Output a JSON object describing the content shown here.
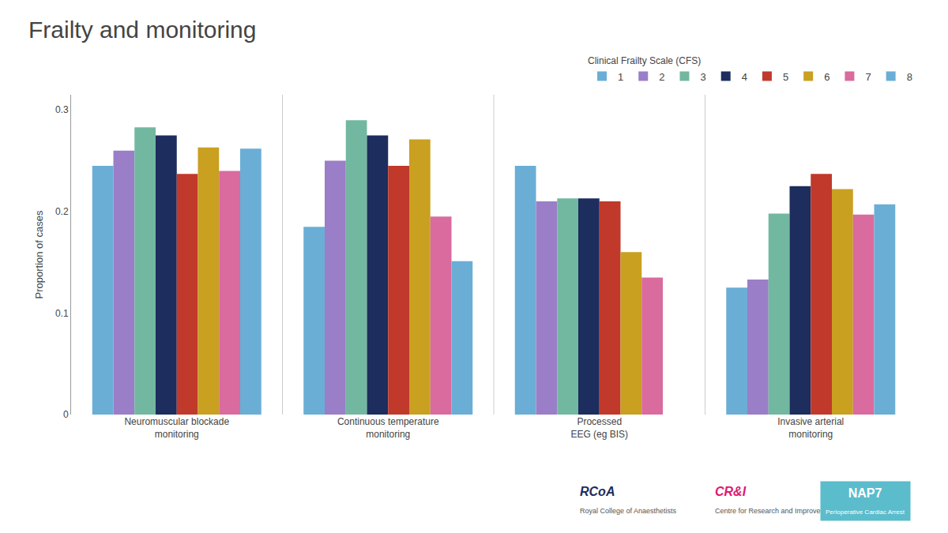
{
  "chart_data": {
    "type": "bar",
    "title": "Frailty and monitoring",
    "legend_title": "Clinical Frailty Scale (CFS)",
    "ylabel": "Proportion of cases",
    "categories": [
      "Neuromuscular blockade\nmonitoring",
      "Continuous temperature\nmonitoring",
      "Processed\nEEG (eg BIS)",
      "Invasive arterial\nmonitoring"
    ],
    "series": [
      {
        "name": "1",
        "color": "#6aaed6",
        "values": [
          0.245,
          0.185,
          0.245,
          0.125
        ]
      },
      {
        "name": "2",
        "color": "#9b7ec8",
        "values": [
          0.26,
          0.25,
          0.21,
          0.133
        ]
      },
      {
        "name": "3",
        "color": "#72b8a0",
        "values": [
          0.283,
          0.29,
          0.213,
          0.198
        ]
      },
      {
        "name": "4",
        "color": "#1c2d5e",
        "values": [
          0.275,
          0.275,
          0.213,
          0.225
        ]
      },
      {
        "name": "5",
        "color": "#c0392b",
        "values": [
          0.237,
          0.245,
          0.21,
          0.237
        ]
      },
      {
        "name": "6",
        "color": "#c9a020",
        "values": [
          0.263,
          0.271,
          0.16,
          0.222
        ]
      },
      {
        "name": "7",
        "color": "#d96b9e",
        "values": [
          0.24,
          0.195,
          0.135,
          0.197
        ]
      },
      {
        "name": "8",
        "color": "#6aaed6",
        "values": [
          0.262,
          0.151,
          null,
          0.207
        ]
      }
    ],
    "ylim": [
      0,
      0.315
    ],
    "yticks": [
      0,
      0.1,
      0.2,
      0.3
    ],
    "grid": false,
    "legend": "upper right",
    "annotations": [
      "RCoA",
      "Royal College of Anaesthetists",
      "CR&I",
      "Centre for Research and Improvement",
      "NAP7",
      "Perioperative Cardiac Arrest"
    ]
  }
}
